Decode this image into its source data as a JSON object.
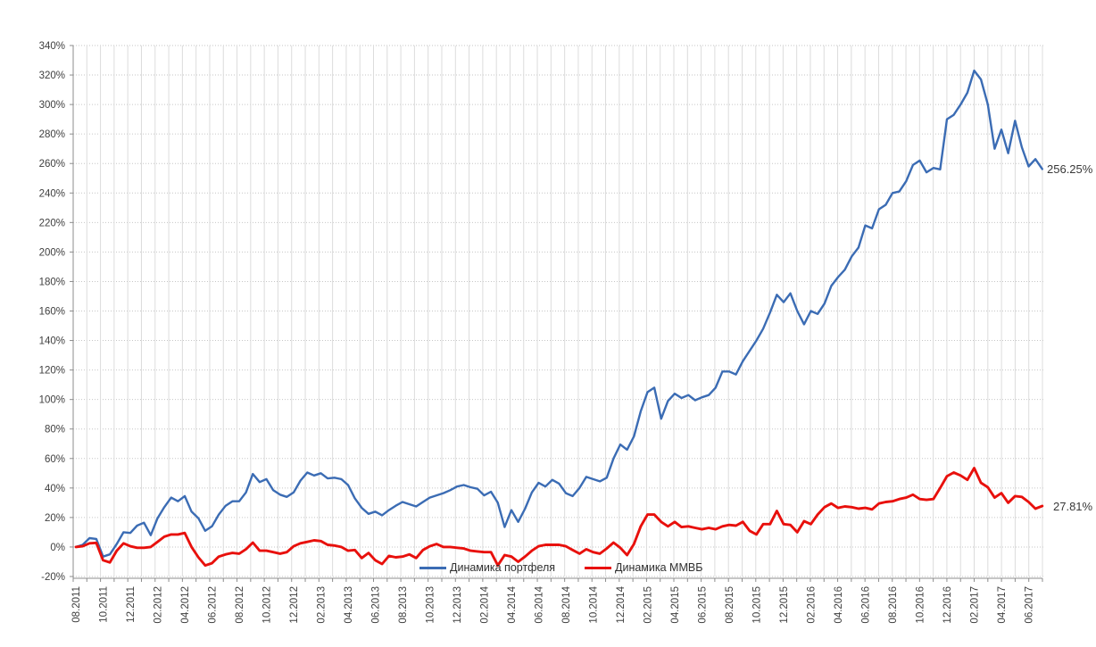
{
  "chart_data": {
    "type": "line",
    "title": "",
    "x_start_label": "08.2011",
    "x_step_months": 0.5,
    "x_tick_labels": [
      "08.2011",
      "10.2011",
      "12.2011",
      "02.2012",
      "04.2012",
      "06.2012",
      "08.2012",
      "10.2012",
      "12.2012",
      "02.2013",
      "04.2013",
      "06.2013",
      "08.2013",
      "10.2013",
      "12.2013",
      "02.2014",
      "04.2014",
      "06.2014",
      "08.2014",
      "10.2014",
      "12.2014",
      "02.2015",
      "04.2015",
      "06.2015",
      "08.2015",
      "10.2015",
      "12.2015",
      "02.2016",
      "04.2016",
      "06.2016",
      "08.2016",
      "10.2016",
      "12.2016",
      "02.2017",
      "04.2017",
      "06.2017"
    ],
    "y_axis": {
      "min": -20,
      "max": 340,
      "step": 20,
      "format": "%"
    },
    "y_tick_labels": [
      "340%",
      "320%",
      "300%",
      "280%",
      "260%",
      "240%",
      "220%",
      "200%",
      "180%",
      "160%",
      "140%",
      "120%",
      "100%",
      "80%",
      "60%",
      "40%",
      "20%",
      "0%",
      "-20%"
    ],
    "grid": {
      "horizontal": "dotted",
      "vertical": "solid-monthly"
    },
    "legend_position": "bottom-center-inside",
    "colors": {
      "portfolio_line": "#3b6cb4",
      "micex_line": "#e8100c",
      "h_gridline": "#c6c6c6",
      "v_gridline": "#dcdcdc",
      "axis_line": "#8c8c8c",
      "text": "#404040"
    },
    "series": [
      {
        "name": "Динамика портфеля",
        "color": "#3b6cb4",
        "end_label": "256.25%",
        "values": [
          0,
          1.5,
          6,
          5.5,
          -6.5,
          -5,
          2,
          10,
          9.5,
          14.5,
          16.5,
          8,
          19.5,
          27,
          33.5,
          31,
          34.5,
          24,
          19.5,
          11,
          14,
          22,
          28,
          31,
          31,
          37,
          49.5,
          44,
          46,
          38.5,
          35.5,
          34,
          37,
          45,
          50.5,
          48.5,
          50,
          46.5,
          47,
          46,
          42,
          33,
          26.5,
          22.5,
          24,
          21.5,
          25,
          28,
          30.5,
          29,
          27.5,
          30.5,
          33.5,
          35,
          36.5,
          38.5,
          41,
          42,
          40.5,
          39.5,
          35,
          37.5,
          30,
          13.5,
          25,
          17,
          26,
          37,
          43.5,
          41,
          45.5,
          43,
          36.5,
          34.5,
          40,
          47.5,
          46,
          44.5,
          47,
          60,
          69.5,
          66,
          75,
          92,
          105,
          108,
          87,
          99,
          104,
          101,
          103,
          99.5,
          101.5,
          103,
          108,
          119,
          119,
          117,
          126,
          133,
          140,
          148,
          159,
          171,
          166,
          172,
          160,
          151,
          160,
          158,
          165,
          177,
          183,
          188,
          197,
          203,
          218,
          216,
          229,
          232,
          240,
          241,
          248,
          259,
          262,
          254,
          257,
          256,
          290,
          293,
          300,
          308,
          323,
          317,
          300,
          270,
          283,
          267,
          289,
          271,
          258,
          263,
          256.25
        ]
      },
      {
        "name": "Динамика ММВБ",
        "color": "#e8100c",
        "end_label": "27.81%",
        "values": [
          0,
          0.5,
          2.5,
          2.8,
          -9,
          -10.5,
          -2.5,
          2.5,
          0.5,
          -0.5,
          -0.5,
          0,
          3.5,
          7,
          8.5,
          8.5,
          9.5,
          0,
          -7,
          -12.5,
          -11,
          -6.5,
          -5,
          -4,
          -4.5,
          -1.5,
          3,
          -2.5,
          -2.5,
          -3.5,
          -4.5,
          -3.5,
          0.5,
          2.5,
          3.5,
          4.5,
          4,
          1.5,
          1,
          0,
          -2.5,
          -2,
          -7.5,
          -4,
          -9,
          -11.5,
          -6,
          -7,
          -6.5,
          -5,
          -7.5,
          -2,
          0.5,
          2,
          0,
          0,
          -0.5,
          -1,
          -2.5,
          -3,
          -3.5,
          -3.5,
          -12.5,
          -5.5,
          -6.5,
          -10,
          -6.5,
          -2.5,
          0.5,
          1.5,
          1.5,
          1.5,
          0.5,
          -2,
          -4.5,
          -1.5,
          -3.5,
          -4.5,
          -1,
          3,
          -0.5,
          -5.5,
          2,
          14,
          22,
          22,
          17,
          14,
          17,
          13.5,
          14,
          13,
          12,
          13,
          12,
          14,
          15,
          14.5,
          17,
          11,
          8.5,
          15.5,
          15.5,
          24.5,
          15.5,
          15,
          10,
          17.5,
          15.5,
          22,
          27,
          29.5,
          26.5,
          27.5,
          27,
          26,
          26.5,
          25.5,
          29.5,
          30.5,
          31,
          32.5,
          33.5,
          35.5,
          32.5,
          32,
          32.5,
          40,
          48,
          50.5,
          48.5,
          45.5,
          53.5,
          43.5,
          40.5,
          33.5,
          36.5,
          30,
          34.5,
          34,
          30.5,
          26,
          27.81
        ]
      }
    ]
  }
}
